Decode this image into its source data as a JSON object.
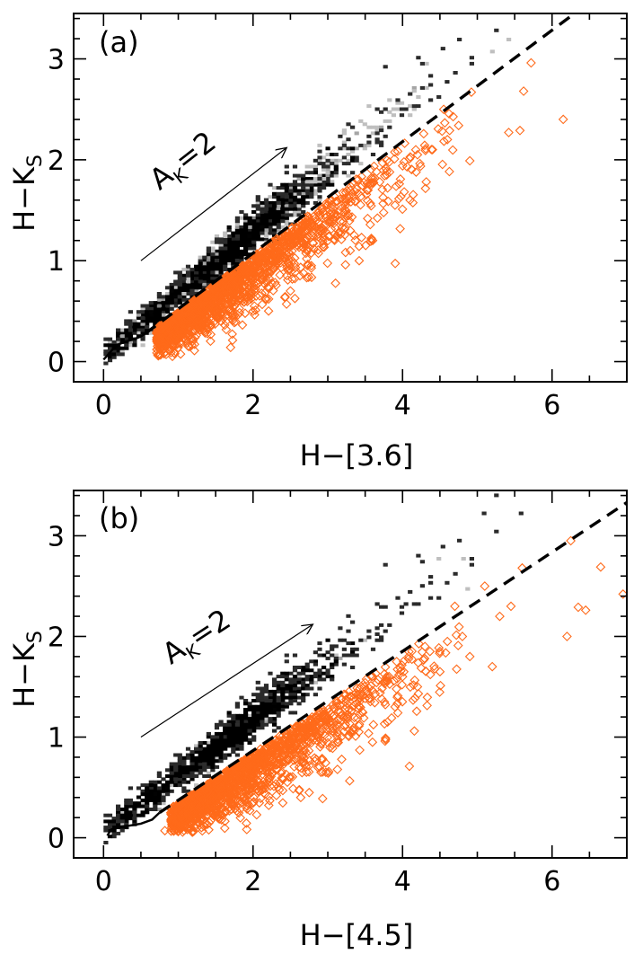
{
  "chart_data": [
    {
      "type": "scatter",
      "panel_label": "(a)",
      "xlabel": "H−[3.6]",
      "ylabel": "H−K",
      "ylabel_sub": "S",
      "xlim": [
        -0.4,
        7.0
      ],
      "ylim": [
        -0.2,
        3.45
      ],
      "xticks": [
        0,
        2,
        4,
        6
      ],
      "yticks": [
        0,
        1,
        2,
        3
      ],
      "xtick_labels": [
        "0",
        "2",
        "4",
        "6"
      ],
      "ytick_labels": [
        "0",
        "1",
        "2",
        "3"
      ],
      "grid": false,
      "density": {
        "description_color": "#000000",
        "ridge_slope": 0.62,
        "ridge_intercept": 0.0
      },
      "locus_curve": {
        "x": [
          0.0,
          0.05,
          0.12,
          0.2,
          0.3,
          0.4,
          0.5,
          0.56
        ],
        "y": [
          0.02,
          0.06,
          0.12,
          0.17,
          0.2,
          0.22,
          0.25,
          0.28
        ]
      },
      "dashed_line": {
        "x": [
          0.56,
          6.3
        ],
        "y": [
          0.28,
          3.45
        ],
        "color": "#000000"
      },
      "reddening_vector": {
        "label": "A",
        "label_sub": "K",
        "label_tail": "=2",
        "x": [
          0.5,
          2.45
        ],
        "y": [
          1.0,
          2.12
        ]
      },
      "excess_sources": {
        "color": "#ff6a1a",
        "marker": "diamond",
        "outliers": [
          [
            5.72,
            2.96
          ],
          [
            5.62,
            2.68
          ],
          [
            5.42,
            2.27
          ],
          [
            5.57,
            2.29
          ],
          [
            6.15,
            2.4
          ],
          [
            4.9,
            1.99
          ],
          [
            4.92,
            2.67
          ],
          [
            4.75,
            2.34
          ],
          [
            4.63,
            2.29
          ],
          [
            4.55,
            2.5
          ],
          [
            4.0,
            1.94
          ],
          [
            3.8,
            1.72
          ],
          [
            4.2,
            2.05
          ],
          [
            3.42,
            1.0
          ],
          [
            2.78,
            0.95
          ],
          [
            1.7,
            0.14
          ],
          [
            2.18,
            0.62
          ],
          [
            4.1,
            1.6
          ],
          [
            3.6,
            1.2
          ],
          [
            3.9,
            1.55
          ],
          [
            4.4,
            2.1
          ],
          [
            3.3,
            1.1
          ],
          [
            2.5,
            0.7
          ],
          [
            4.6,
            2.2
          ],
          [
            2.0,
            0.5
          ]
        ]
      }
    },
    {
      "type": "scatter",
      "panel_label": "(b)",
      "xlabel": "H−[4.5]",
      "ylabel": "H−K",
      "ylabel_sub": "S",
      "xlim": [
        -0.4,
        7.0
      ],
      "ylim": [
        -0.2,
        3.45
      ],
      "xticks": [
        0,
        2,
        4,
        6
      ],
      "yticks": [
        0,
        1,
        2,
        3
      ],
      "xtick_labels": [
        "0",
        "2",
        "4",
        "6"
      ],
      "ytick_labels": [
        "0",
        "1",
        "2",
        "3"
      ],
      "grid": false,
      "density": {
        "description_color": "#000000",
        "ridge_slope": 0.57,
        "ridge_intercept": 0.0
      },
      "locus_curve": {
        "x": [
          0.05,
          0.1,
          0.2,
          0.35,
          0.5,
          0.65,
          0.75
        ],
        "y": [
          0.02,
          0.08,
          0.11,
          0.12,
          0.14,
          0.18,
          0.25
        ]
      },
      "dashed_line": {
        "x": [
          0.75,
          7.0
        ],
        "y": [
          0.25,
          3.33
        ],
        "color": "#000000"
      },
      "reddening_vector": {
        "label": "A",
        "label_sub": "K",
        "label_tail": "=2",
        "x": [
          0.5,
          2.8
        ],
        "y": [
          1.0,
          2.12
        ]
      },
      "excess_sources": {
        "color": "#ff6a1a",
        "marker": "diamond",
        "outliers": [
          [
            6.25,
            2.95
          ],
          [
            5.6,
            2.68
          ],
          [
            5.45,
            2.3
          ],
          [
            6.35,
            2.29
          ],
          [
            6.45,
            2.26
          ],
          [
            6.65,
            2.69
          ],
          [
            6.95,
            2.42
          ],
          [
            6.2,
            2.0
          ],
          [
            5.1,
            2.5
          ],
          [
            5.2,
            1.7
          ],
          [
            4.9,
            1.8
          ],
          [
            4.8,
            2.0
          ],
          [
            4.5,
            1.65
          ],
          [
            4.2,
            1.5
          ],
          [
            3.8,
            1.15
          ],
          [
            3.7,
            1.44
          ],
          [
            1.65,
            0.4
          ],
          [
            1.05,
            0.1
          ],
          [
            0.82,
            0.07
          ],
          [
            4.6,
            1.95
          ],
          [
            4.3,
            1.9
          ],
          [
            3.9,
            1.3
          ],
          [
            5.3,
            2.2
          ],
          [
            4.0,
            1.6
          ],
          [
            4.7,
            2.3
          ]
        ]
      }
    }
  ]
}
